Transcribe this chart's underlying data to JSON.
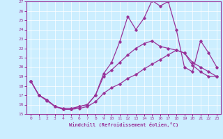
{
  "xlabel": "Windchill (Refroidissement éolien,°C)",
  "bg_color": "#cceeff",
  "line_color": "#993399",
  "xlim": [
    -0.5,
    23.5
  ],
  "ylim": [
    15,
    27
  ],
  "yticks": [
    15,
    16,
    17,
    18,
    19,
    20,
    21,
    22,
    23,
    24,
    25,
    26,
    27
  ],
  "xticks": [
    0,
    1,
    2,
    3,
    4,
    5,
    6,
    7,
    8,
    9,
    10,
    11,
    12,
    13,
    14,
    15,
    16,
    17,
    18,
    19,
    20,
    21,
    22,
    23
  ],
  "series1_x": [
    0,
    1,
    2,
    3,
    4,
    5,
    6,
    7,
    8,
    9,
    10,
    11,
    12,
    13,
    14,
    15,
    16,
    17,
    18,
    19,
    20,
    21,
    22,
    23
  ],
  "series1_y": [
    18.5,
    17.0,
    16.5,
    15.8,
    15.5,
    15.5,
    15.8,
    16.0,
    17.0,
    19.3,
    20.5,
    22.7,
    25.4,
    24.0,
    25.2,
    27.1,
    26.5,
    27.0,
    24.0,
    20.0,
    19.5,
    22.8,
    21.5,
    20.0
  ],
  "series2_x": [
    0,
    1,
    2,
    3,
    4,
    5,
    6,
    7,
    8,
    9,
    10,
    11,
    12,
    13,
    14,
    15,
    16,
    17,
    18,
    19,
    20,
    21,
    22,
    23
  ],
  "series2_y": [
    18.5,
    17.0,
    16.5,
    15.8,
    15.6,
    15.6,
    15.8,
    16.0,
    17.0,
    19.0,
    19.7,
    20.5,
    21.3,
    22.0,
    22.5,
    22.8,
    22.2,
    22.0,
    21.8,
    21.5,
    20.2,
    19.5,
    19.0,
    19.0
  ],
  "series3_x": [
    0,
    1,
    2,
    3,
    4,
    5,
    6,
    7,
    8,
    9,
    10,
    11,
    12,
    13,
    14,
    15,
    16,
    17,
    18,
    19,
    20,
    21,
    22,
    23
  ],
  "series3_y": [
    18.5,
    17.0,
    16.4,
    15.8,
    15.5,
    15.5,
    15.6,
    15.8,
    16.3,
    17.2,
    17.8,
    18.2,
    18.8,
    19.2,
    19.8,
    20.3,
    20.8,
    21.3,
    21.8,
    21.5,
    20.5,
    20.0,
    19.5,
    19.0
  ]
}
